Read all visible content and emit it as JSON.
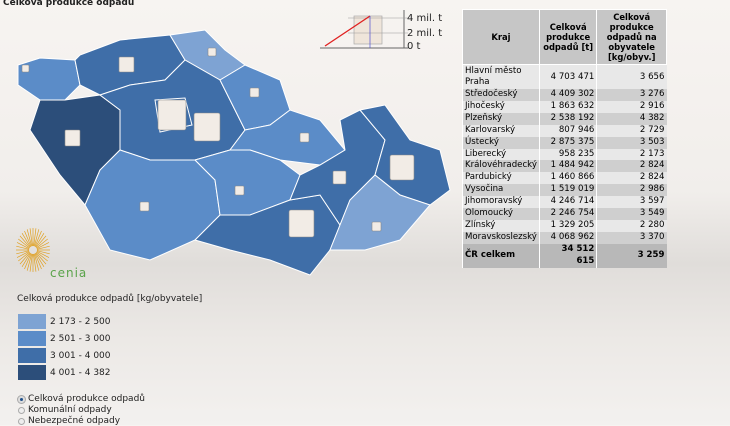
{
  "title": "Celková produkce odpadů",
  "colors": {
    "c1": "#7ea3d3",
    "c2": "#5b8cc8",
    "c3": "#3f6ea8",
    "c4": "#2c4e7a"
  },
  "scale": {
    "labels": [
      "4 mil. t",
      "2 mil. t",
      "0 t"
    ]
  },
  "table": {
    "headers": [
      "Kraj",
      "Celková produkce odpadů [t]",
      "Celková produkce odpadů na obyvatele [kg/obyv.]"
    ],
    "rows": [
      [
        "Hlavní město Praha",
        "4 703 471",
        "3 656"
      ],
      [
        "Středočeský",
        "4 409 302",
        "3 276"
      ],
      [
        "Jihočeský",
        "1 863 632",
        "2 916"
      ],
      [
        "Plzeňský",
        "2 538 192",
        "4 382"
      ],
      [
        "Karlovarský",
        "807 946",
        "2 729"
      ],
      [
        "Ústecký",
        "2 875 375",
        "3 503"
      ],
      [
        "Liberecký",
        "958 235",
        "2 173"
      ],
      [
        "Královéhradecký",
        "1 484 942",
        "2 824"
      ],
      [
        "Pardubický",
        "1 460 866",
        "2 824"
      ],
      [
        "Vysočina",
        "1 519 019",
        "2 986"
      ],
      [
        "Jihomoravský",
        "4 246 714",
        "3 597"
      ],
      [
        "Olomoucký",
        "2 246 754",
        "3 549"
      ],
      [
        "Zlínský",
        "1 329 205",
        "2 280"
      ],
      [
        "Moravskoslezský",
        "4 068 962",
        "3 370"
      ]
    ],
    "total": [
      "ČR celkem",
      "34 512 615",
      "3 259"
    ]
  },
  "legend": {
    "title": "Celková produkce odpadů [kg/obyvatele]",
    "items": [
      {
        "label": "2 173 - 2 500",
        "color": "#7ea3d3"
      },
      {
        "label": "2 501 - 3 000",
        "color": "#5b8cc8"
      },
      {
        "label": "3 001 - 4 000",
        "color": "#3f6ea8"
      },
      {
        "label": "4 001 - 4 382",
        "color": "#2c4e7a"
      }
    ]
  },
  "radios": [
    {
      "label": "Celková produkce odpadů",
      "checked": true
    },
    {
      "label": "Komunální odpady",
      "checked": false
    },
    {
      "label": "Nebezpečné odpady",
      "checked": false
    }
  ],
  "logo": "cenia"
}
